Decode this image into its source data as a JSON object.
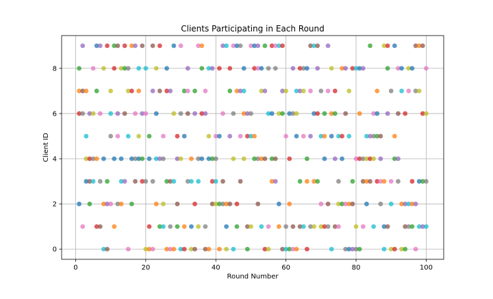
{
  "chart_data": {
    "type": "scatter",
    "title": "Clients Participating in Each Round",
    "xlabel": "Round Number",
    "ylabel": "Client ID",
    "xlim": [
      -4,
      105
    ],
    "ylim": [
      -0.45,
      9.45
    ],
    "xticks": [
      0,
      20,
      40,
      60,
      80,
      100
    ],
    "yticks": [
      0,
      2,
      4,
      6,
      8
    ],
    "grid": true,
    "legend": "none",
    "point_alpha": 0.75,
    "colors": [
      "#1f77b4",
      "#ff7f0e",
      "#2ca02c",
      "#d62728",
      "#9467bd",
      "#8c564b",
      "#e377c2",
      "#7f7f7f",
      "#bcbd22",
      "#17becf"
    ],
    "rounds": [
      {
        "x": 1,
        "clients": [
          2,
          7,
          8,
          6
        ]
      },
      {
        "x": 2,
        "clients": [
          9,
          7,
          1,
          6
        ]
      },
      {
        "x": 3,
        "clients": [
          4,
          5,
          3,
          7
        ]
      },
      {
        "x": 4,
        "clients": [
          2,
          4,
          6,
          3
        ]
      },
      {
        "x": 5,
        "clients": [
          8,
          4,
          6,
          3
        ]
      },
      {
        "x": 6,
        "clients": [
          9,
          4,
          7,
          1
        ]
      },
      {
        "x": 7,
        "clients": [
          9,
          1,
          6,
          3
        ]
      },
      {
        "x": 8,
        "clients": [
          8,
          0,
          4,
          2
        ]
      },
      {
        "x": 9,
        "clients": [
          3,
          9,
          2,
          0
        ]
      },
      {
        "x": 10,
        "clients": [
          2,
          5,
          7,
          6
        ]
      },
      {
        "x": 11,
        "clients": [
          4,
          1,
          9,
          8
        ]
      },
      {
        "x": 12,
        "clients": [
          6,
          9,
          5,
          2
        ]
      },
      {
        "x": 13,
        "clients": [
          8,
          3,
          4,
          2
        ]
      },
      {
        "x": 14,
        "clients": [
          8,
          9,
          3,
          6
        ]
      },
      {
        "x": 15,
        "clients": [
          0,
          8,
          7,
          5
        ]
      },
      {
        "x": 16,
        "clients": [
          4,
          9,
          2,
          7
        ]
      },
      {
        "x": 17,
        "clients": [
          9,
          3,
          6,
          4
        ]
      },
      {
        "x": 18,
        "clients": [
          5,
          8,
          4,
          7
        ]
      },
      {
        "x": 19,
        "clients": [
          4,
          3,
          6,
          9
        ]
      },
      {
        "x": 20,
        "clients": [
          6,
          3,
          0,
          8
        ]
      },
      {
        "x": 21,
        "clients": [
          4,
          0,
          5,
          1
        ]
      },
      {
        "x": 22,
        "clients": [
          7,
          9,
          0,
          3
        ]
      },
      {
        "x": 23,
        "clients": [
          8,
          4,
          6,
          2
        ]
      },
      {
        "x": 24,
        "clients": [
          1,
          9,
          4,
          7
        ]
      },
      {
        "x": 25,
        "clients": [
          5,
          4,
          2,
          1
        ]
      },
      {
        "x": 26,
        "clients": [
          8,
          0,
          3,
          7
        ]
      },
      {
        "x": 27,
        "clients": [
          7,
          3,
          0,
          1
        ]
      },
      {
        "x": 28,
        "clients": [
          6,
          3,
          9,
          0
        ]
      },
      {
        "x": 29,
        "clients": [
          1,
          5,
          4,
          2
        ]
      },
      {
        "x": 30,
        "clients": [
          9,
          6,
          4,
          0
        ]
      },
      {
        "x": 31,
        "clients": [
          5,
          1,
          7,
          0
        ]
      },
      {
        "x": 32,
        "clients": [
          8,
          6,
          7,
          3
        ]
      },
      {
        "x": 33,
        "clients": [
          0,
          3,
          1,
          4
        ]
      },
      {
        "x": 34,
        "clients": [
          7,
          2,
          6,
          0
        ]
      },
      {
        "x": 35,
        "clients": [
          9,
          4,
          1,
          3
        ]
      },
      {
        "x": 36,
        "clients": [
          4,
          9,
          8,
          6
        ]
      },
      {
        "x": 37,
        "clients": [
          6,
          0,
          7,
          1
        ]
      },
      {
        "x": 38,
        "clients": [
          5,
          8,
          4,
          0
        ]
      },
      {
        "x": 39,
        "clients": [
          4,
          3,
          8,
          2
        ]
      },
      {
        "x": 40,
        "clients": [
          5,
          4,
          2,
          3
        ]
      },
      {
        "x": 41,
        "clients": [
          5,
          0,
          2,
          8
        ]
      },
      {
        "x": 42,
        "clients": [
          9,
          3,
          6,
          2
        ]
      },
      {
        "x": 43,
        "clients": [
          0,
          9,
          1,
          2
        ]
      },
      {
        "x": 44,
        "clients": [
          7,
          8,
          5,
          2
        ]
      },
      {
        "x": 45,
        "clients": [
          9,
          6,
          4,
          0
        ]
      },
      {
        "x": 46,
        "clients": [
          9,
          7,
          1,
          2
        ]
      },
      {
        "x": 47,
        "clients": [
          7,
          3,
          5,
          9
        ]
      },
      {
        "x": 48,
        "clients": [
          4,
          7,
          8,
          6
        ]
      },
      {
        "x": 49,
        "clients": [
          0,
          5,
          6,
          1
        ]
      },
      {
        "x": 50,
        "clients": [
          9,
          6,
          1,
          5
        ]
      },
      {
        "x": 51,
        "clients": [
          9,
          5,
          4,
          8
        ]
      },
      {
        "x": 52,
        "clients": [
          9,
          2,
          8,
          4
        ]
      },
      {
        "x": 53,
        "clients": [
          7,
          1,
          8,
          4
        ]
      },
      {
        "x": 54,
        "clients": [
          9,
          0,
          7,
          4
        ]
      },
      {
        "x": 55,
        "clients": [
          1,
          8,
          0,
          6
        ]
      },
      {
        "x": 56,
        "clients": [
          6,
          3,
          4,
          9
        ]
      },
      {
        "x": 57,
        "clients": [
          3,
          4,
          9,
          8
        ]
      },
      {
        "x": 58,
        "clients": [
          6,
          9,
          2,
          1
        ]
      },
      {
        "x": 59,
        "clients": [
          6,
          9,
          7,
          0
        ]
      },
      {
        "x": 60,
        "clients": [
          5,
          1,
          7,
          0
        ]
      },
      {
        "x": 61,
        "clients": [
          6,
          2,
          0,
          4
        ]
      },
      {
        "x": 62,
        "clients": [
          8,
          1,
          0,
          6
        ]
      },
      {
        "x": 63,
        "clients": [
          6,
          7,
          5,
          0
        ]
      },
      {
        "x": 64,
        "clients": [
          3,
          8,
          7,
          1
        ]
      },
      {
        "x": 65,
        "clients": [
          5,
          8,
          7,
          1
        ]
      },
      {
        "x": 66,
        "clients": [
          8,
          3,
          4,
          0
        ]
      },
      {
        "x": 67,
        "clients": [
          5,
          9,
          7,
          1
        ]
      },
      {
        "x": 68,
        "clients": [
          1,
          9,
          6,
          3
        ]
      },
      {
        "x": 69,
        "clients": [
          3,
          6,
          8,
          9
        ]
      },
      {
        "x": 70,
        "clients": [
          2,
          7,
          1,
          5
        ]
      },
      {
        "x": 71,
        "clients": [
          4,
          5,
          6,
          1
        ]
      },
      {
        "x": 72,
        "clients": [
          9,
          2,
          7,
          1
        ]
      },
      {
        "x": 73,
        "clients": [
          8,
          0,
          5,
          6
        ]
      },
      {
        "x": 74,
        "clients": [
          6,
          7,
          4,
          1
        ]
      },
      {
        "x": 75,
        "clients": [
          1,
          3,
          2,
          5
        ]
      },
      {
        "x": 76,
        "clients": [
          4,
          8,
          2,
          5
        ]
      },
      {
        "x": 77,
        "clients": [
          8,
          6,
          2,
          0
        ]
      },
      {
        "x": 78,
        "clients": [
          7,
          5,
          0,
          2
        ]
      },
      {
        "x": 79,
        "clients": [
          3,
          8,
          0,
          2
        ]
      },
      {
        "x": 80,
        "clients": [
          4,
          0,
          1,
          8
        ]
      },
      {
        "x": 81,
        "clients": [
          8,
          6,
          0,
          4
        ]
      },
      {
        "x": 82,
        "clients": [
          8,
          3,
          1,
          4
        ]
      },
      {
        "x": 83,
        "clients": [
          4,
          5,
          2,
          3
        ]
      },
      {
        "x": 84,
        "clients": [
          9,
          4,
          5,
          3
        ]
      },
      {
        "x": 85,
        "clients": [
          6,
          5,
          4,
          1
        ]
      },
      {
        "x": 86,
        "clients": [
          6,
          7,
          5,
          3
        ]
      },
      {
        "x": 87,
        "clients": [
          4,
          5,
          3,
          2
        ]
      },
      {
        "x": 88,
        "clients": [
          9,
          0,
          1,
          3
        ]
      },
      {
        "x": 89,
        "clients": [
          8,
          9,
          6,
          1
        ]
      },
      {
        "x": 90,
        "clients": [
          3,
          7,
          0,
          2
        ]
      },
      {
        "x": 91,
        "clients": [
          9,
          5,
          4,
          0
        ]
      },
      {
        "x": 92,
        "clients": [
          4,
          6,
          8,
          3
        ]
      },
      {
        "x": 93,
        "clients": [
          0,
          7,
          8,
          2
        ]
      },
      {
        "x": 94,
        "clients": [
          0,
          6,
          2,
          1
        ]
      },
      {
        "x": 95,
        "clients": [
          7,
          1,
          8,
          2
        ]
      },
      {
        "x": 96,
        "clients": [
          8,
          2,
          1,
          3
        ]
      },
      {
        "x": 97,
        "clients": [
          2,
          9,
          0,
          7
        ]
      },
      {
        "x": 98,
        "clients": [
          7,
          1,
          3,
          9
        ]
      },
      {
        "x": 99,
        "clients": [
          3,
          6,
          1,
          9
        ]
      },
      {
        "x": 100,
        "clients": [
          8,
          3,
          6,
          1
        ]
      }
    ]
  }
}
